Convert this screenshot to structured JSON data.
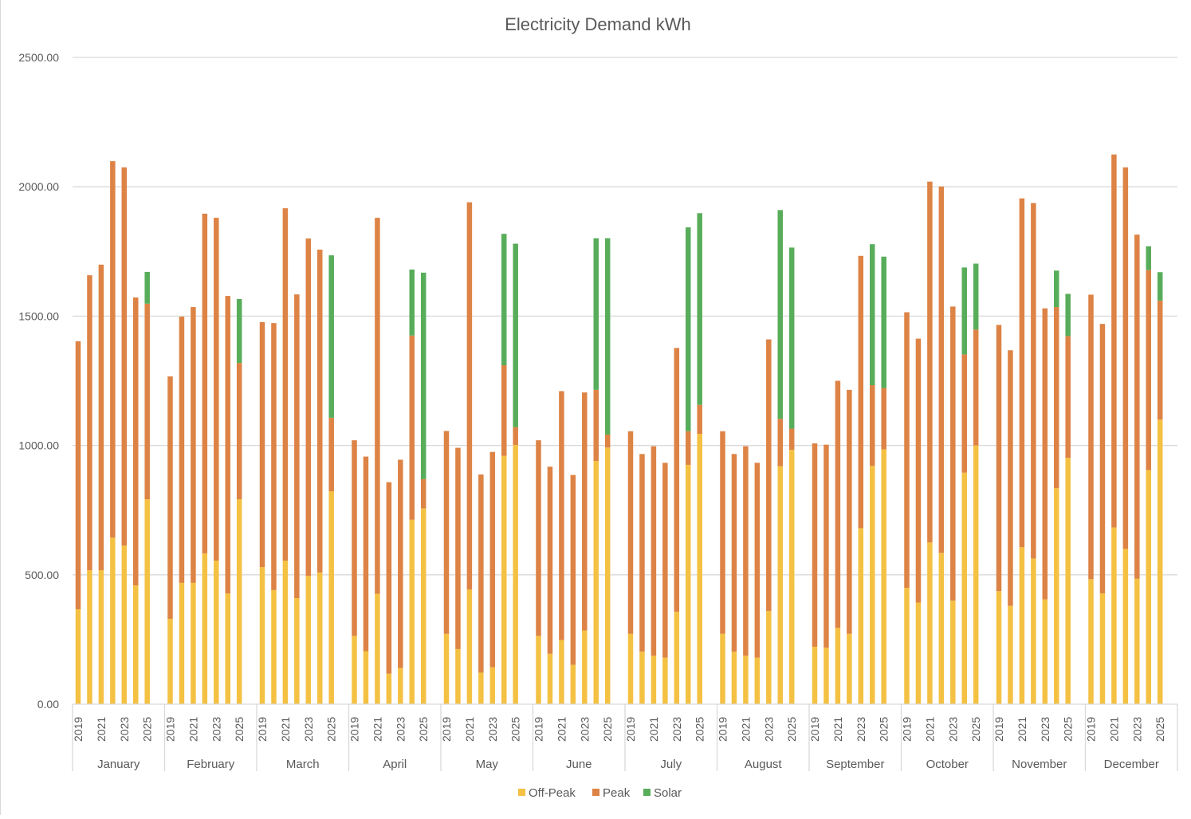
{
  "chart_data": {
    "type": "stacked-bar",
    "title": "Electricity Demand kWh",
    "xlabel": "",
    "ylabel": "",
    "ylim": [
      0,
      2500
    ],
    "y_ticks": [
      "0.00",
      "500.00",
      "1000.00",
      "1500.00",
      "2000.00",
      "2500.00"
    ],
    "y_tick_values": [
      0,
      500,
      1000,
      1500,
      2000,
      2500
    ],
    "grid": true,
    "legend_position": "bottom",
    "months": [
      "January",
      "February",
      "March",
      "April",
      "May",
      "June",
      "July",
      "August",
      "September",
      "October",
      "November",
      "December"
    ],
    "years": [
      2019,
      2020,
      2021,
      2022,
      2023,
      2024,
      2025
    ],
    "year_tick_labels": [
      "2019",
      "2021",
      "2023",
      "2025"
    ],
    "colors": {
      "Off-Peak": "#f4c143",
      "Peak": "#dd8345",
      "Solar": "#58ad5b"
    },
    "series": [
      {
        "name": "Off-Peak",
        "values": [
          [
            367,
            518,
            518,
            644,
            613,
            459,
            792
          ],
          [
            330,
            469,
            469,
            583,
            555,
            428,
            792
          ],
          [
            530,
            441,
            555,
            410,
            496,
            509,
            823
          ],
          [
            264,
            205,
            427,
            118,
            140,
            713,
            757
          ],
          [
            272,
            213,
            443,
            122,
            143,
            960,
            1002
          ],
          [
            264,
            195,
            248,
            152,
            285,
            940,
            992
          ],
          [
            272,
            203,
            187,
            180,
            357,
            925,
            1045
          ],
          [
            272,
            203,
            187,
            180,
            360,
            920,
            983
          ],
          [
            222,
            218,
            295,
            272,
            680,
            921,
            985
          ],
          [
            450,
            393,
            625,
            585,
            400,
            895,
            1000
          ],
          [
            437,
            380,
            607,
            563,
            405,
            835,
            952
          ],
          [
            483,
            428,
            683,
            600,
            485,
            905,
            1100
          ]
        ]
      },
      {
        "name": "Peak",
        "values": [
          [
            1036,
            1140,
            1181,
            1455,
            1462,
            1113,
            756
          ],
          [
            937,
            1029,
            1066,
            1313,
            1325,
            1150,
            527
          ],
          [
            947,
            1032,
            1362,
            1174,
            1304,
            1248,
            284
          ],
          [
            756,
            752,
            1453,
            740,
            805,
            712,
            113
          ],
          [
            784,
            778,
            1497,
            766,
            832,
            350,
            69
          ],
          [
            756,
            723,
            962,
            734,
            920,
            275,
            50
          ],
          [
            783,
            764,
            810,
            753,
            1020,
            130,
            112
          ],
          [
            783,
            764,
            810,
            753,
            1050,
            183,
            82
          ],
          [
            786,
            785,
            955,
            943,
            1053,
            312,
            237
          ],
          [
            1065,
            1020,
            1395,
            1416,
            1137,
            457,
            448
          ],
          [
            1029,
            988,
            1348,
            1374,
            1125,
            700,
            471
          ],
          [
            1100,
            1042,
            1442,
            1475,
            1330,
            773,
            460
          ]
        ]
      },
      {
        "name": "Solar",
        "values": [
          [
            0,
            0,
            0,
            0,
            0,
            0,
            123
          ],
          [
            0,
            0,
            0,
            0,
            0,
            0,
            247
          ],
          [
            0,
            0,
            0,
            0,
            0,
            0,
            628
          ],
          [
            0,
            0,
            0,
            0,
            0,
            255,
            798
          ],
          [
            0,
            0,
            0,
            0,
            0,
            508,
            709
          ],
          [
            0,
            0,
            0,
            0,
            0,
            586,
            759
          ],
          [
            0,
            0,
            0,
            0,
            0,
            788,
            741
          ],
          [
            0,
            0,
            0,
            0,
            0,
            807,
            700
          ],
          [
            0,
            0,
            0,
            0,
            0,
            545,
            508
          ],
          [
            0,
            0,
            0,
            0,
            0,
            336,
            255
          ],
          [
            0,
            0,
            0,
            0,
            0,
            141,
            163
          ],
          [
            0,
            0,
            0,
            0,
            0,
            92,
            110
          ]
        ]
      }
    ]
  }
}
